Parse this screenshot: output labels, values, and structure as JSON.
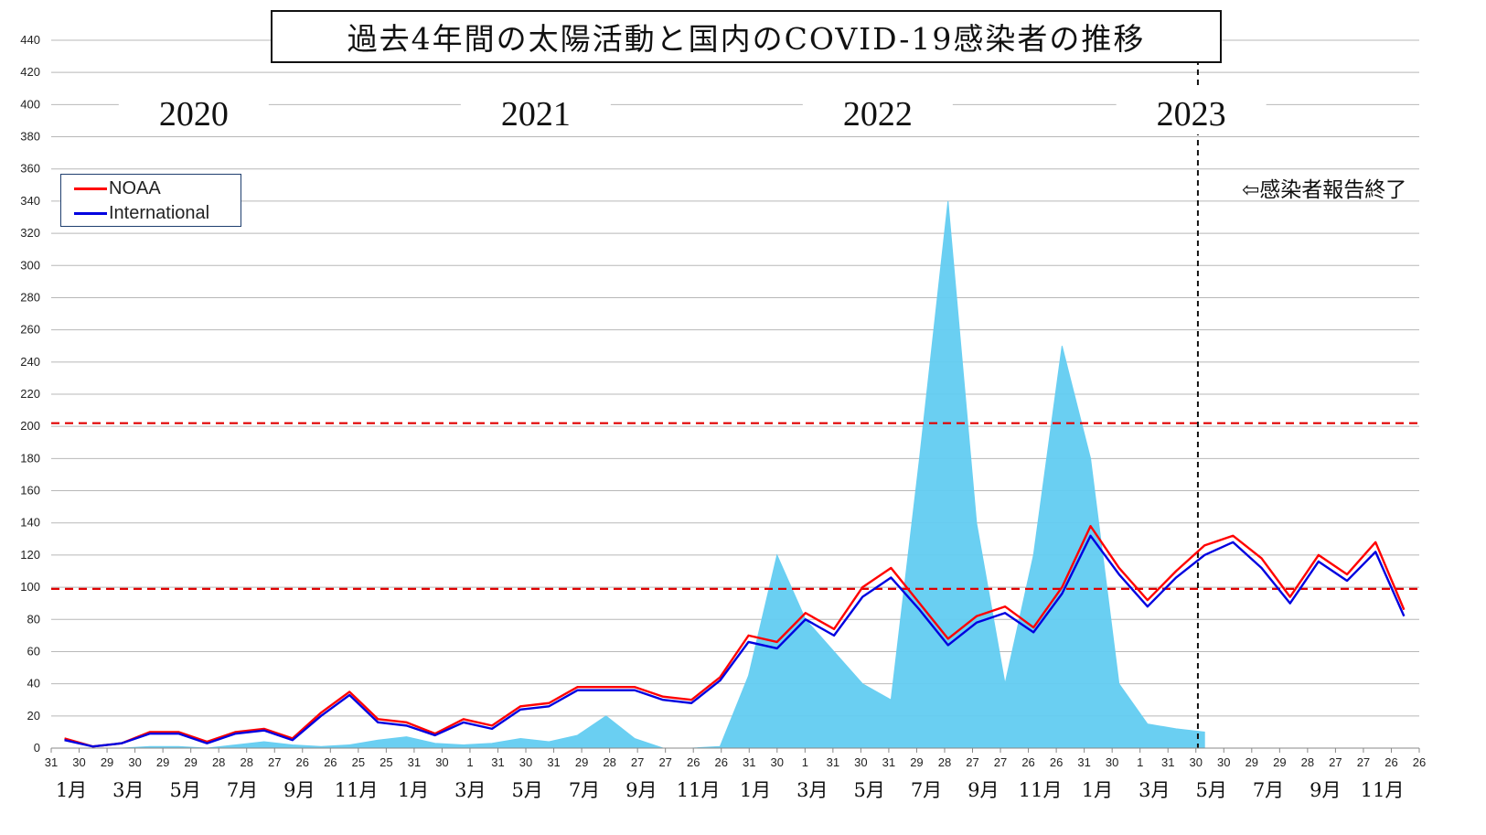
{
  "chart_data": {
    "type": "line",
    "title": "過去4年間の太陽活動と国内のCOVID-19感染者の推移",
    "y_ticks": [
      0,
      20,
      40,
      60,
      80,
      100,
      120,
      140,
      160,
      180,
      200,
      220,
      240,
      260,
      280,
      300,
      320,
      340,
      360,
      380,
      400,
      420,
      440
    ],
    "ylim": [
      0,
      440
    ],
    "grid": true,
    "legend_placement": "top-left",
    "x_range": [
      "2020-01",
      "2023-12"
    ],
    "day_tick_labels": [
      "31",
      "30",
      "29",
      "30",
      "29",
      "29",
      "28",
      "28",
      "27",
      "26",
      "26",
      "25",
      "25",
      "31",
      "30",
      "1",
      "31",
      "30",
      "31",
      "29",
      "28",
      "27",
      "27",
      "26",
      "26",
      "31",
      "30",
      "1",
      "31",
      "30",
      "31",
      "29",
      "28",
      "27",
      "27",
      "26",
      "26",
      "31",
      "30",
      "1",
      "31",
      "30",
      "30",
      "29",
      "29",
      "28",
      "27",
      "27",
      "26",
      "26"
    ],
    "month_labels": [
      {
        "label": "1月",
        "date": "2020-01"
      },
      {
        "label": "3月",
        "date": "2020-03"
      },
      {
        "label": "5月",
        "date": "2020-05"
      },
      {
        "label": "7月",
        "date": "2020-07"
      },
      {
        "label": "9月",
        "date": "2020-09"
      },
      {
        "label": "11月",
        "date": "2020-11"
      },
      {
        "label": "1月",
        "date": "2021-01"
      },
      {
        "label": "3月",
        "date": "2021-03"
      },
      {
        "label": "5月",
        "date": "2021-05"
      },
      {
        "label": "7月",
        "date": "2021-07"
      },
      {
        "label": "9月",
        "date": "2021-09"
      },
      {
        "label": "11月",
        "date": "2021-11"
      },
      {
        "label": "1月",
        "date": "2022-01"
      },
      {
        "label": "3月",
        "date": "2022-03"
      },
      {
        "label": "5月",
        "date": "2022-05"
      },
      {
        "label": "7月",
        "date": "2022-07"
      },
      {
        "label": "9月",
        "date": "2022-09"
      },
      {
        "label": "11月",
        "date": "2022-11"
      },
      {
        "label": "1月",
        "date": "2023-01"
      },
      {
        "label": "3月",
        "date": "2023-03"
      },
      {
        "label": "5月",
        "date": "2023-05"
      },
      {
        "label": "7月",
        "date": "2023-07"
      },
      {
        "label": "9月",
        "date": "2023-09"
      },
      {
        "label": "11月",
        "date": "2023-11"
      }
    ],
    "year_labels": [
      {
        "label": "2020",
        "date": "2020-06"
      },
      {
        "label": "2021",
        "date": "2021-06"
      },
      {
        "label": "2022",
        "date": "2022-06"
      },
      {
        "label": "2023",
        "date": "2023-05"
      }
    ],
    "reference_lines": [
      {
        "y": 202,
        "color": "#e00000",
        "style": "dashed"
      },
      {
        "y": 99,
        "color": "#e00000",
        "style": "dashed"
      }
    ],
    "event_marker": {
      "date": "2023-05-08",
      "label": "⇦感染者報告終了",
      "color": "#111111",
      "style": "dashed"
    },
    "series": [
      {
        "name": "NOAA",
        "color": "#ff0000",
        "kind": "line",
        "x": [
          "2020-01",
          "2020-02",
          "2020-03",
          "2020-04",
          "2020-05",
          "2020-06",
          "2020-07",
          "2020-08",
          "2020-09",
          "2020-10",
          "2020-11",
          "2020-12",
          "2021-01",
          "2021-02",
          "2021-03",
          "2021-04",
          "2021-05",
          "2021-06",
          "2021-07",
          "2021-08",
          "2021-09",
          "2021-10",
          "2021-11",
          "2021-12",
          "2022-01",
          "2022-02",
          "2022-03",
          "2022-04",
          "2022-05",
          "2022-06",
          "2022-07",
          "2022-08",
          "2022-09",
          "2022-10",
          "2022-11",
          "2022-12",
          "2023-01",
          "2023-02",
          "2023-03",
          "2023-04",
          "2023-05",
          "2023-06",
          "2023-07",
          "2023-08",
          "2023-09",
          "2023-10",
          "2023-11",
          "2023-12"
        ],
        "values": [
          6,
          1,
          3,
          10,
          10,
          4,
          10,
          12,
          6,
          22,
          35,
          18,
          16,
          9,
          18,
          14,
          26,
          28,
          38,
          38,
          38,
          32,
          30,
          44,
          70,
          66,
          84,
          74,
          100,
          112,
          90,
          68,
          82,
          88,
          75,
          100,
          138,
          112,
          92,
          110,
          126,
          132,
          118,
          94,
          120,
          108,
          128,
          86
        ]
      },
      {
        "name": "International",
        "color": "#0000e0",
        "kind": "line",
        "x": [
          "2020-01",
          "2020-02",
          "2020-03",
          "2020-04",
          "2020-05",
          "2020-06",
          "2020-07",
          "2020-08",
          "2020-09",
          "2020-10",
          "2020-11",
          "2020-12",
          "2021-01",
          "2021-02",
          "2021-03",
          "2021-04",
          "2021-05",
          "2021-06",
          "2021-07",
          "2021-08",
          "2021-09",
          "2021-10",
          "2021-11",
          "2021-12",
          "2022-01",
          "2022-02",
          "2022-03",
          "2022-04",
          "2022-05",
          "2022-06",
          "2022-07",
          "2022-08",
          "2022-09",
          "2022-10",
          "2022-11",
          "2022-12",
          "2023-01",
          "2023-02",
          "2023-03",
          "2023-04",
          "2023-05",
          "2023-06",
          "2023-07",
          "2023-08",
          "2023-09",
          "2023-10",
          "2023-11",
          "2023-12"
        ],
        "values": [
          5,
          1,
          3,
          9,
          9,
          3,
          9,
          11,
          5,
          20,
          33,
          16,
          14,
          8,
          16,
          12,
          24,
          26,
          36,
          36,
          36,
          30,
          28,
          42,
          66,
          62,
          80,
          70,
          94,
          106,
          86,
          64,
          78,
          84,
          72,
          96,
          132,
          108,
          88,
          106,
          120,
          128,
          112,
          90,
          116,
          104,
          122,
          82
        ]
      },
      {
        "name": "",
        "color": "#63cdf2",
        "kind": "area",
        "x": [
          "2020-01",
          "2020-02",
          "2020-03",
          "2020-04",
          "2020-05",
          "2020-06",
          "2020-07",
          "2020-08",
          "2020-09",
          "2020-10",
          "2020-11",
          "2020-12",
          "2021-01",
          "2021-02",
          "2021-03",
          "2021-04",
          "2021-05",
          "2021-06",
          "2021-07",
          "2021-08",
          "2021-09",
          "2021-10",
          "2021-11",
          "2021-12",
          "2022-01",
          "2022-02",
          "2022-03",
          "2022-04",
          "2022-05",
          "2022-06",
          "2022-07",
          "2022-08",
          "2022-09",
          "2022-10",
          "2022-11",
          "2022-12",
          "2023-01",
          "2023-02",
          "2023-03",
          "2023-04",
          "2023-05"
        ],
        "values": [
          0,
          0,
          0,
          1,
          1,
          0,
          2,
          4,
          2,
          1,
          2,
          5,
          7,
          3,
          2,
          3,
          6,
          4,
          8,
          20,
          6,
          0,
          0,
          1,
          45,
          120,
          80,
          60,
          40,
          30,
          180,
          340,
          140,
          40,
          120,
          250,
          180,
          40,
          15,
          12,
          10
        ]
      }
    ]
  },
  "legend": {
    "noaa_label": "NOAA",
    "international_label": "International"
  }
}
